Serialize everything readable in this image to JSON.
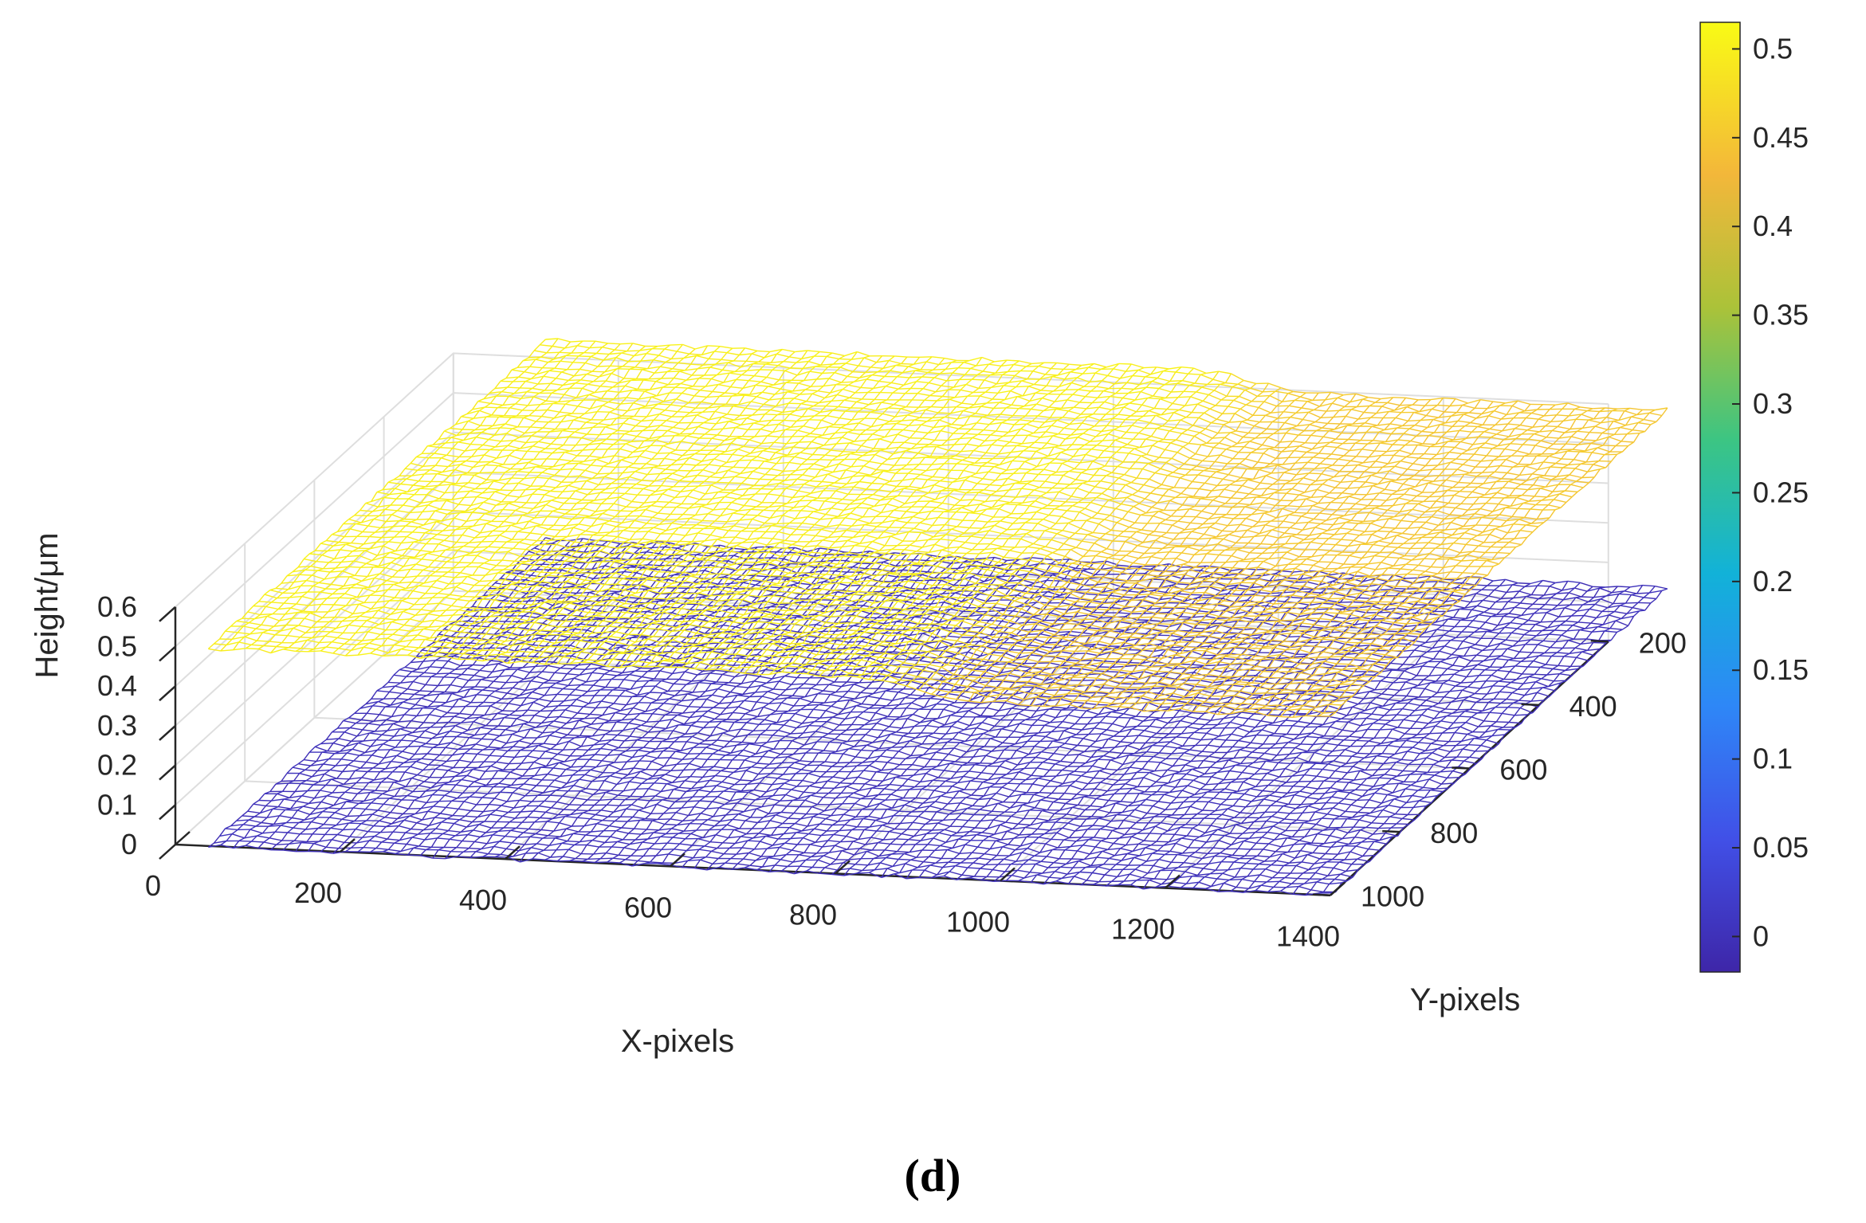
{
  "chart_data": {
    "type": "surface",
    "view": "3d-mesh",
    "xlabel": "X-pixels",
    "ylabel": "Y-pixels",
    "zlabel": "Height/μm",
    "xlim": [
      0,
      1400
    ],
    "ylim": [
      200,
      1000
    ],
    "zlim": [
      0,
      0.6
    ],
    "x_ticks": [
      0,
      200,
      400,
      600,
      800,
      1000,
      1200,
      1400
    ],
    "x_tick_labels": [
      "0",
      "200",
      "400",
      "600",
      "800",
      "1000",
      "1200",
      "1400"
    ],
    "y_ticks": [
      200,
      400,
      600,
      800,
      1000
    ],
    "y_tick_labels": [
      "200",
      "400",
      "600",
      "800",
      "1000"
    ],
    "z_ticks": [
      0,
      0.1,
      0.2,
      0.3,
      0.4,
      0.5,
      0.6
    ],
    "z_tick_labels": [
      "0",
      "0.1",
      "0.2",
      "0.3",
      "0.4",
      "0.5",
      "0.6"
    ],
    "grid": true,
    "surfaces": [
      {
        "description": "step surface",
        "x_range": [
          40,
          1400
        ],
        "y_range": [
          30,
          1000
        ],
        "level_low_x": 0.5,
        "level_high_x": 0.45,
        "step_center_x": 900,
        "step_width_x": 110
      },
      {
        "description": "reference plane",
        "x_range": [
          40,
          1400
        ],
        "y_range": [
          30,
          1000
        ],
        "level": 0.0
      }
    ],
    "colorbar": {
      "colormap": "parula",
      "range": [
        -0.02,
        0.515
      ],
      "ticks": [
        0,
        0.05,
        0.1,
        0.15,
        0.2,
        0.25,
        0.3,
        0.35,
        0.4,
        0.45,
        0.5
      ],
      "tick_labels": [
        "0",
        "0.05",
        "0.1",
        "0.15",
        "0.2",
        "0.25",
        "0.3",
        "0.35",
        "0.4",
        "0.45",
        "0.5"
      ]
    }
  },
  "caption": "(d)"
}
